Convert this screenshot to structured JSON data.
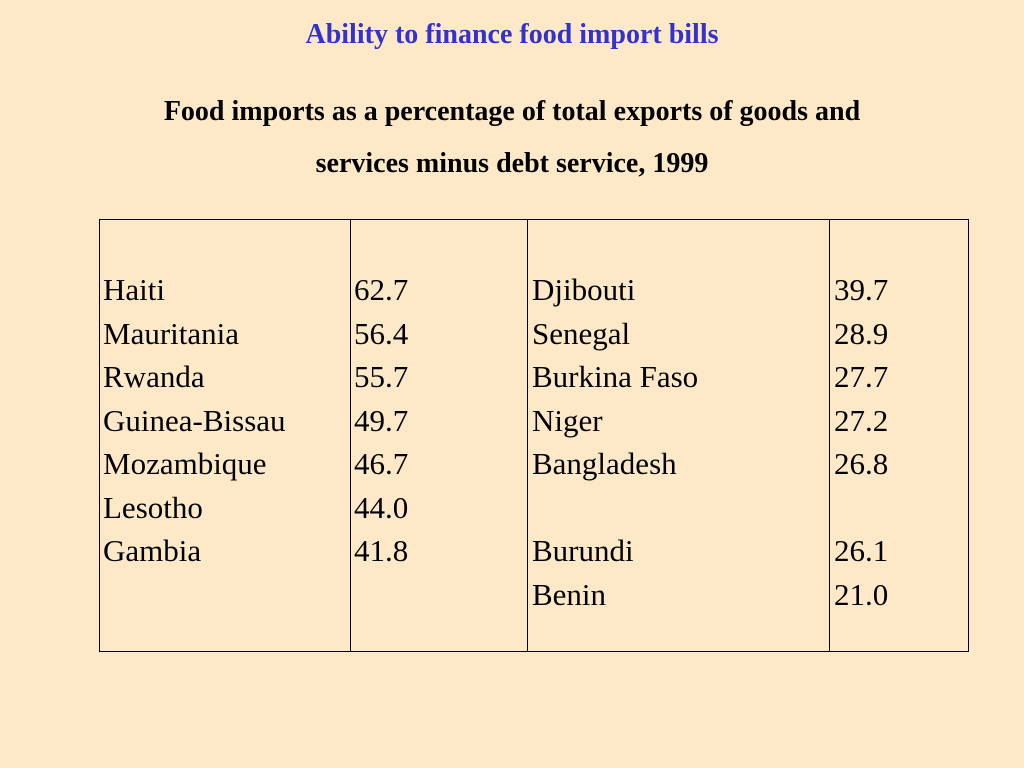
{
  "title": "Ability to finance food import bills",
  "subtitle": {
    "line1": "Food imports as a percentage of total exports of goods and",
    "line2": "services minus debt service, 1999"
  },
  "table": {
    "left_group": {
      "countries": [
        "Haiti",
        "Mauritania",
        "Rwanda",
        "Guinea-Bissau",
        "Mozambique",
        "Lesotho",
        "Gambia",
        ""
      ],
      "values": [
        "62.7",
        "56.4",
        "55.7",
        "49.7",
        "46.7",
        "44.0",
        "41.8",
        ""
      ]
    },
    "right_group": {
      "countries": [
        "Djibouti",
        "Senegal",
        "Burkina Faso",
        "Niger",
        "Bangladesh",
        "",
        "Burundi",
        "Benin"
      ],
      "values": [
        "39.7",
        "28.9",
        "27.7",
        "27.2",
        "26.8",
        "",
        "26.1",
        "21.0"
      ]
    }
  }
}
